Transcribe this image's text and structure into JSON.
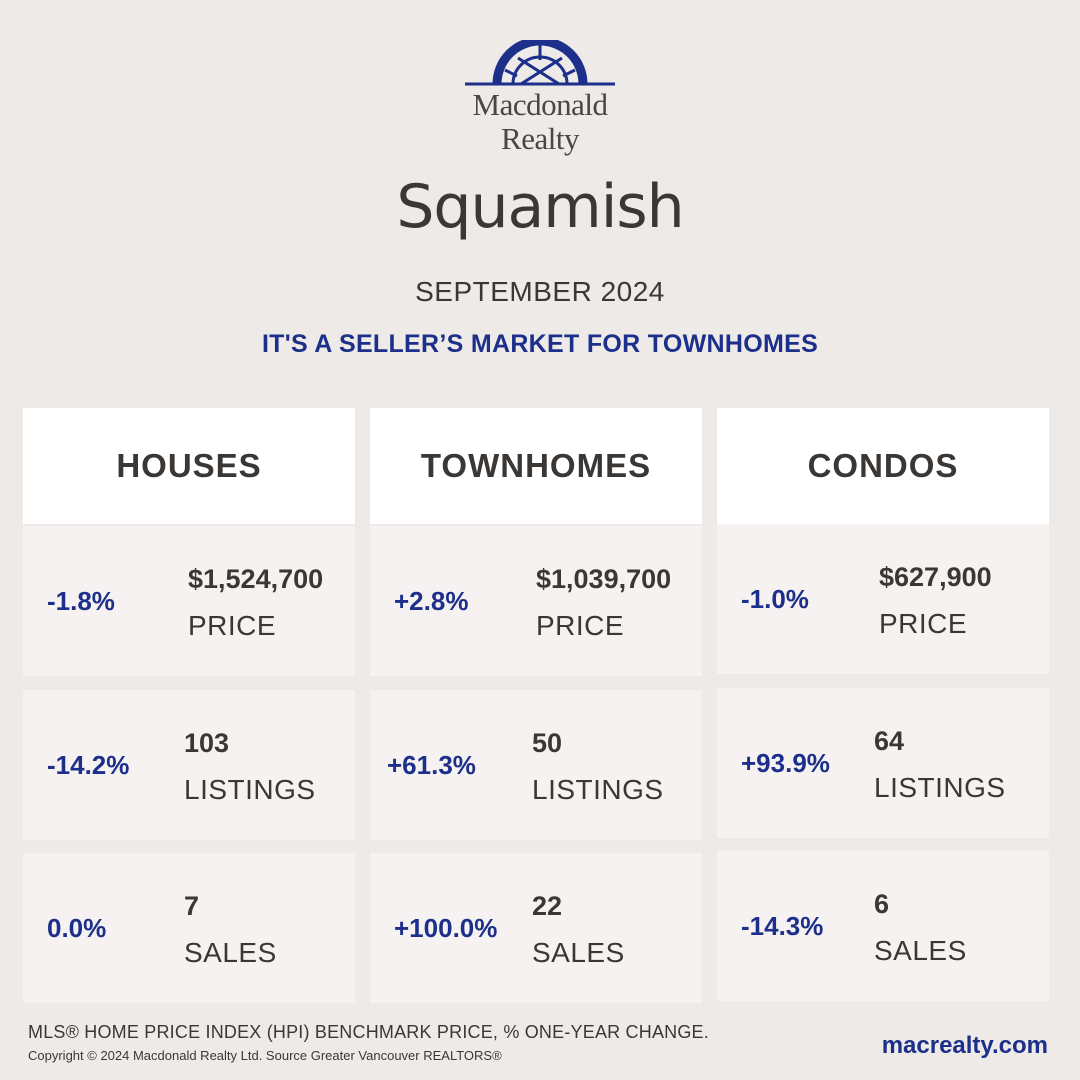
{
  "brand": {
    "line1": "Macdonald",
    "line2": "Realty"
  },
  "title": "Squamish",
  "subtitle": "SEPTEMBER 2024",
  "tagline": "IT'S A SELLER’S MARKET FOR TOWNHOMES",
  "columns": [
    {
      "header": "HOUSES",
      "price": {
        "pct": "-1.8%",
        "value": "$1,524,700",
        "label": "PRICE"
      },
      "listings": {
        "pct": "-14.2%",
        "value": "103",
        "label": "LISTINGS"
      },
      "sales": {
        "pct": "0.0%",
        "value": "7",
        "label": "SALES"
      }
    },
    {
      "header": "TOWNHOMES",
      "price": {
        "pct": "+2.8%",
        "value": "$1,039,700",
        "label": "PRICE"
      },
      "listings": {
        "pct": "+61.3%",
        "value": "50",
        "label": "LISTINGS"
      },
      "sales": {
        "pct": "+100.0%",
        "value": "22",
        "label": "SALES"
      }
    },
    {
      "header": "CONDOS",
      "price": {
        "pct": "-1.0%",
        "value": "$627,900",
        "label": "PRICE"
      },
      "listings": {
        "pct": "+93.9%",
        "value": "64",
        "label": "LISTINGS"
      },
      "sales": {
        "pct": "-14.3%",
        "value": "6",
        "label": "SALES"
      }
    }
  ],
  "footer": {
    "note": "MLS® HOME PRICE INDEX (HPI) BENCHMARK PRICE, % ONE-YEAR CHANGE.",
    "copyright": "Copyright © 2024 Macdonald Realty Ltd. Source Greater Vancouver REALTORS®",
    "website": "macrealty.com"
  },
  "colors": {
    "accent": "#1c2f8a",
    "background": "#eeeae8",
    "text": "#3a3735"
  }
}
